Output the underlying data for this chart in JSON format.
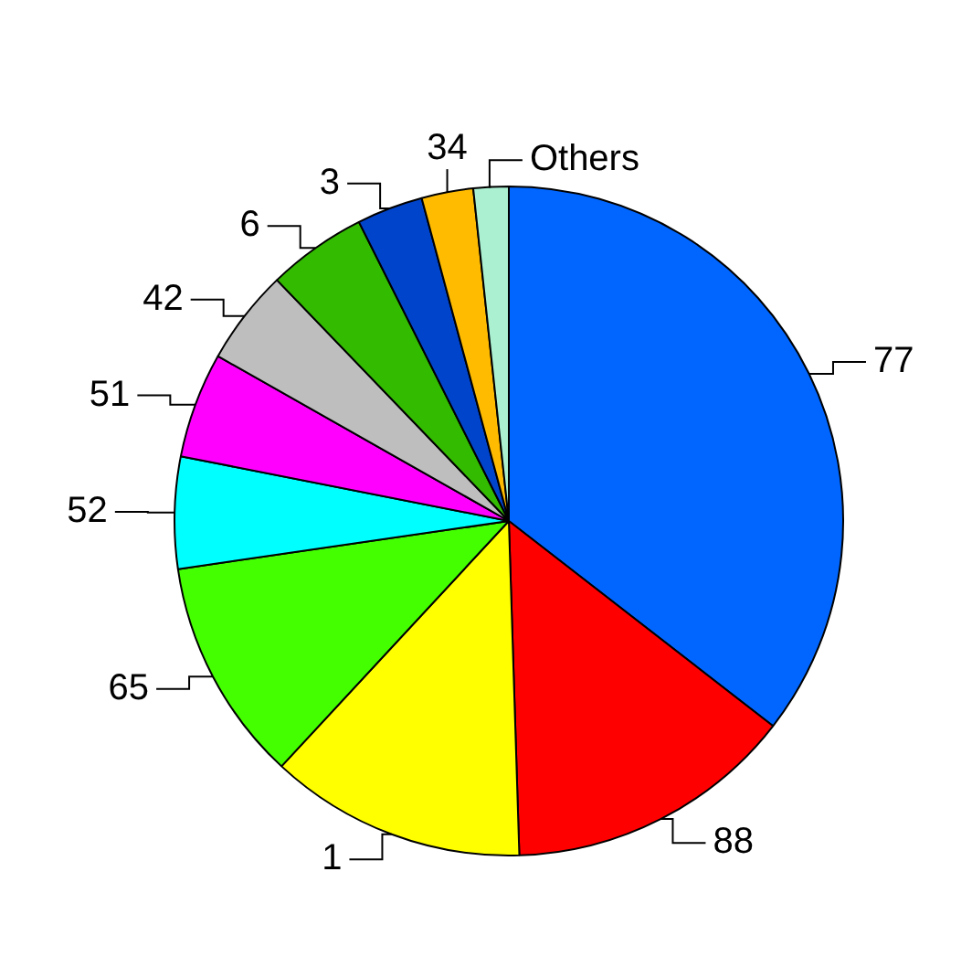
{
  "chart_data": {
    "type": "pie",
    "categories": [
      "77",
      "88",
      "1",
      "65",
      "52",
      "51",
      "42",
      "6",
      "3",
      "34",
      "Others"
    ],
    "values": [
      35.5,
      14.0,
      12.4,
      10.8,
      5.4,
      5.1,
      4.6,
      4.8,
      3.2,
      2.5,
      1.7
    ],
    "colors": [
      "#0066ff",
      "#ff0000",
      "#ffff00",
      "#44ff00",
      "#00ffff",
      "#ff00ff",
      "#bebebe",
      "#33bb00",
      "#0044cc",
      "#ffbb00",
      "#aaf0d1"
    ]
  }
}
